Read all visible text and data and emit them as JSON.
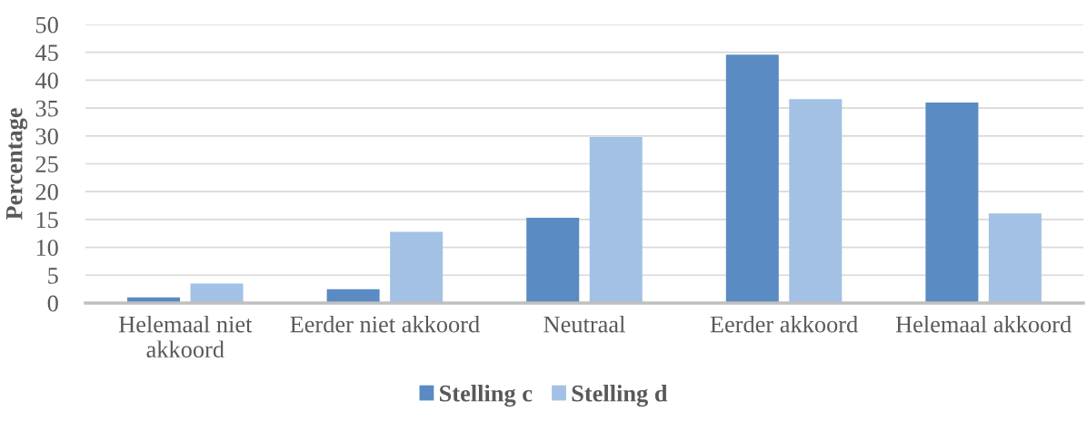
{
  "chart_data": {
    "type": "bar",
    "ylabel": "Percentage",
    "categories": [
      "Helemaal niet akkoord",
      "Eerder niet akkoord",
      "Neutraal",
      "Eerder akkoord",
      "Helemaal akkoord"
    ],
    "series": [
      {
        "name": "Stelling c",
        "color": "#5a8bc2",
        "values": [
          1,
          2.5,
          15.3,
          44.6,
          36
        ]
      },
      {
        "name": "Stelling d",
        "color": "#a3c1e5",
        "values": [
          3.5,
          12.8,
          29.8,
          36.6,
          16.1
        ]
      }
    ],
    "ylim": [
      0,
      50
    ],
    "yticks": [
      0,
      5,
      10,
      15,
      20,
      25,
      30,
      35,
      40,
      45,
      50
    ],
    "grid": "y",
    "legend": "bottom"
  }
}
